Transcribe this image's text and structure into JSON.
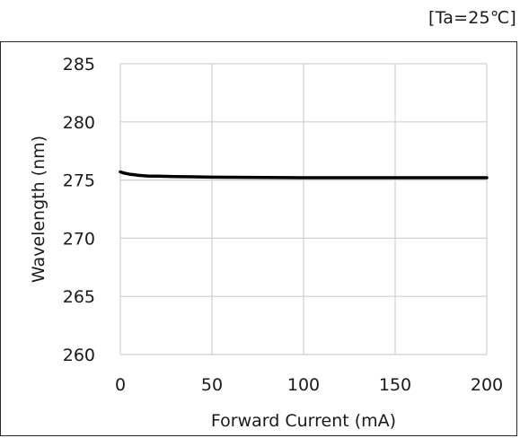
{
  "condition": "[Ta=25℃]",
  "chart_data": {
    "type": "line",
    "xlabel": "Forward Current (mA)",
    "ylabel": "Wavelength (nm)",
    "xlim": [
      0,
      200
    ],
    "ylim": [
      260,
      285
    ],
    "xticks": [
      0,
      50,
      100,
      150,
      200
    ],
    "yticks": [
      260,
      265,
      270,
      275,
      280,
      285
    ],
    "grid": true,
    "legend": "none",
    "series": [
      {
        "color": "#000000",
        "x": [
          0,
          2,
          5,
          8,
          10,
          15,
          20,
          30,
          40,
          50,
          60,
          80,
          100,
          120,
          150,
          175,
          200
        ],
        "y": [
          275.7,
          275.6,
          275.5,
          275.45,
          275.4,
          275.35,
          275.33,
          275.3,
          275.28,
          275.25,
          275.24,
          275.22,
          275.2,
          275.2,
          275.2,
          275.2,
          275.2
        ]
      }
    ]
  }
}
